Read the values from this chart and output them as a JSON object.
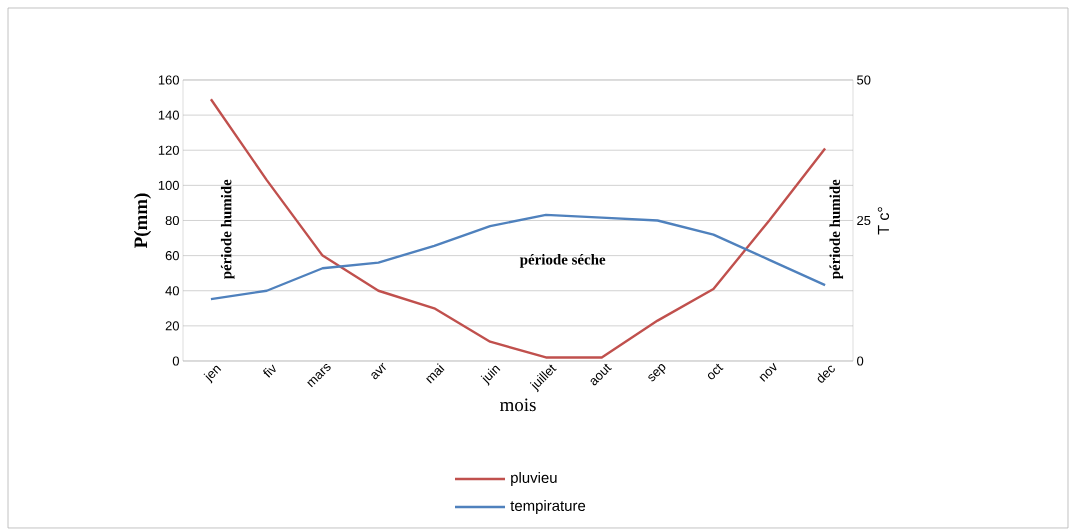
{
  "chart_data": {
    "type": "line",
    "xlabel": "mois",
    "ylabel": "P(mm)",
    "y2label": "T c°",
    "categories": [
      "jen",
      "fiv",
      "mars",
      "avr",
      "mai",
      "juin",
      "juillet",
      "aout",
      "sep",
      "oct",
      "nov",
      "dec"
    ],
    "series": [
      {
        "name": "pluvieu",
        "color": "#c0504d",
        "values": [
          149,
          103,
          60,
          40,
          30,
          11,
          2,
          2,
          23,
          41,
          80,
          121
        ]
      },
      {
        "name": "tempirature",
        "color": "#4f81bd",
        "axis": "y2",
        "values": [
          11,
          12.5,
          16.5,
          17.5,
          20.5,
          24,
          26,
          25.5,
          25,
          22.5,
          18,
          13.5
        ]
      }
    ],
    "ylim": [
      0,
      160
    ],
    "yticks": [
      0,
      20,
      40,
      60,
      80,
      100,
      120,
      140,
      160
    ],
    "y2lim": [
      0,
      50
    ],
    "y2ticks": [
      0,
      25,
      50
    ],
    "grid": "y",
    "legend": "bottom",
    "marker": "none",
    "line_style": "solid",
    "annotations": [
      "période humide",
      "période séche",
      "période humide"
    ]
  }
}
